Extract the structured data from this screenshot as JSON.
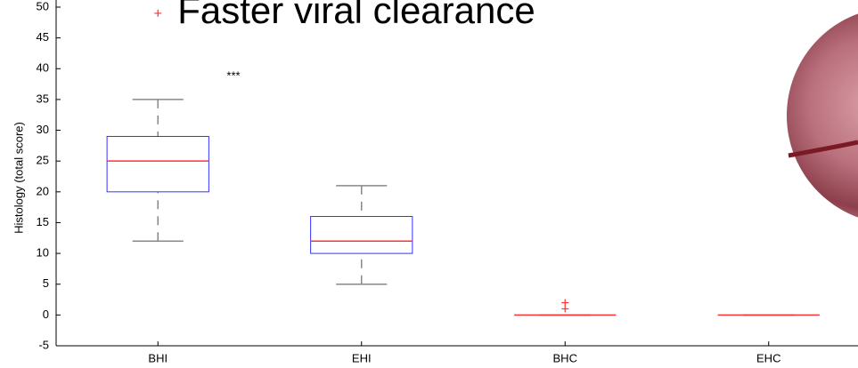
{
  "chart_data": {
    "type": "box",
    "title": "Faster viral clearance",
    "ylabel": "Histology (total score)",
    "annotation": "***",
    "categories": [
      "BHI",
      "EHI",
      "BHC",
      "EHC"
    ],
    "boxes": [
      {
        "min": 12,
        "q1": 20,
        "median": 25,
        "q3": 29,
        "max": 35,
        "outliers": [
          49
        ]
      },
      {
        "min": 5,
        "q1": 10,
        "median": 12,
        "q3": 16,
        "max": 21,
        "outliers": []
      },
      {
        "min": 0,
        "q1": 0,
        "median": 0,
        "q3": 0,
        "max": 0,
        "outliers": [
          1,
          2
        ]
      },
      {
        "min": 0,
        "q1": 0,
        "median": 0,
        "q3": 0,
        "max": 0,
        "outliers": []
      }
    ],
    "box_color": "#3333ff",
    "median_color": "#ff3333",
    "whisker_color": "#888888",
    "ylim": [
      -5,
      50
    ],
    "yticks": [
      -5,
      0,
      5,
      10,
      15,
      20,
      25,
      30,
      35,
      40,
      45,
      50
    ]
  }
}
